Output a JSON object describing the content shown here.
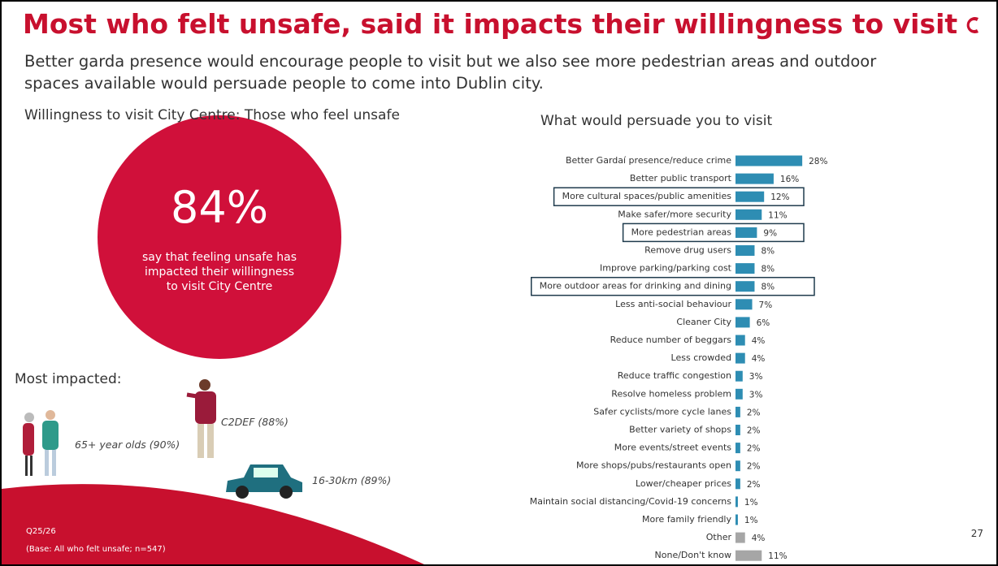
{
  "header": {
    "title": "Most who felt unsafe, said it impacts their willingness to visit",
    "subtitle": "Better garda presence would encourage people to visit but we also see more pedestrian areas and outdoor spaces available would persuade people to come into Dublin city."
  },
  "left": {
    "heading": "Willingness to visit City Centre: Those who feel unsafe",
    "big_number": "84%",
    "big_text": "say that feeling unsafe has impacted their willingness to visit City Centre",
    "impacted_heading": "Most impacted:",
    "impacted": [
      "65+ year olds (90%)",
      "C2DEF (88%)",
      "16-30km (89%)"
    ]
  },
  "footer": {
    "question": "Q25/26",
    "base": "(Base: All who felt unsafe; n=547)",
    "page": "27"
  },
  "chart_data": {
    "type": "hbar",
    "title": "What would persuade you to visit",
    "categories": [
      "Better Gardaí presence/reduce crime",
      "Better public transport",
      "More cultural spaces/public amenities",
      "Make safer/more security",
      "More pedestrian areas",
      "Remove drug users",
      "Improve parking/parking cost",
      "More outdoor areas for drinking and dining",
      "Less anti-social behaviour",
      "Cleaner City",
      "Reduce number of beggars",
      "Less crowded",
      "Reduce traffic congestion",
      "Resolve homeless problem",
      "Safer cyclists/more cycle lanes",
      "Better variety of shops",
      "More events/street events",
      "More shops/pubs/restaurants open",
      "Lower/cheaper prices",
      "Maintain social distancing/Covid-19 concerns",
      "More family friendly",
      "Other",
      "None/Don't know"
    ],
    "values": [
      28,
      16,
      12,
      11,
      9,
      8,
      8,
      8,
      7,
      6,
      4,
      4,
      3,
      3,
      2,
      2,
      2,
      2,
      2,
      1,
      1,
      4,
      11
    ],
    "value_labels": [
      "28%",
      "16%",
      "12%",
      "11%",
      "9%",
      "8%",
      "8%",
      "8%",
      "7%",
      "6%",
      "4%",
      "4%",
      "3%",
      "3%",
      "2%",
      "2%",
      "2%",
      "2%",
      "2%",
      "1%",
      "1%",
      "4%",
      "11%"
    ],
    "colors": [
      "#2e8db3",
      "#2e8db3",
      "#2e8db3",
      "#2e8db3",
      "#2e8db3",
      "#2e8db3",
      "#2e8db3",
      "#2e8db3",
      "#2e8db3",
      "#2e8db3",
      "#2e8db3",
      "#2e8db3",
      "#2e8db3",
      "#2e8db3",
      "#2e8db3",
      "#2e8db3",
      "#2e8db3",
      "#2e8db3",
      "#2e8db3",
      "#2e8db3",
      "#2e8db3",
      "#a6a6a6",
      "#a6a6a6"
    ],
    "outlined": [
      2,
      4,
      7
    ],
    "xlim": [
      0,
      30
    ]
  }
}
